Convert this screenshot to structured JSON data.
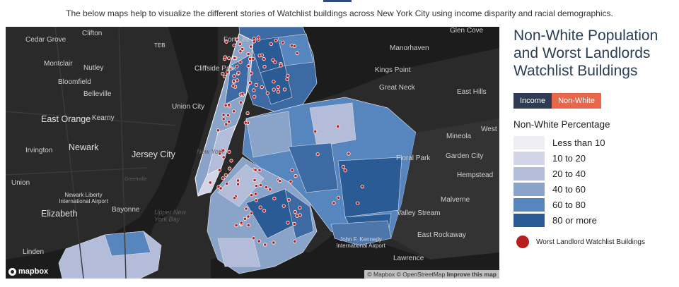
{
  "intro": "The below maps help to visualize the different stories of Watchlist buildings across New York City using income disparity and racial demographics.",
  "map": {
    "place_labels": [
      {
        "text": "Clifton",
        "size": "normal"
      },
      {
        "text": "Cedar Grove",
        "size": "normal"
      },
      {
        "text": "TEB",
        "size": "air"
      },
      {
        "text": "Fort Lee",
        "size": "normal"
      },
      {
        "text": "Glen Cove",
        "size": "normal"
      },
      {
        "text": "Manorhaven",
        "size": "normal"
      },
      {
        "text": "Montclair",
        "size": "normal"
      },
      {
        "text": "Nutley",
        "size": "normal"
      },
      {
        "text": "Cliffside Park",
        "size": "normal"
      },
      {
        "text": "Kings Point",
        "size": "normal"
      },
      {
        "text": "Bloomfield",
        "size": "normal"
      },
      {
        "text": "Great Neck",
        "size": "normal"
      },
      {
        "text": "Belleville",
        "size": "normal"
      },
      {
        "text": "East Hills",
        "size": "normal"
      },
      {
        "text": "Union City",
        "size": "normal"
      },
      {
        "text": "East Orange",
        "size": "big"
      },
      {
        "text": "Kearny",
        "size": "normal"
      },
      {
        "text": "Mineola",
        "size": "normal"
      },
      {
        "text": "West",
        "size": "normal"
      },
      {
        "text": "Newark",
        "size": "big"
      },
      {
        "text": "Irvington",
        "size": "normal"
      },
      {
        "text": "Jersey City",
        "size": "big"
      },
      {
        "text": "New York",
        "size": "water"
      },
      {
        "text": "Garden City",
        "size": "normal"
      },
      {
        "text": "Floral Park",
        "size": "normal"
      },
      {
        "text": "Hempstead",
        "size": "normal"
      },
      {
        "text": "Union",
        "size": "normal"
      },
      {
        "text": "Greenville",
        "size": "small"
      },
      {
        "text": "Newark Liberty International Airport",
        "size": "air"
      },
      {
        "text": "Malverne",
        "size": "normal"
      },
      {
        "text": "Elizabeth",
        "size": "big"
      },
      {
        "text": "Bayonne",
        "size": "normal"
      },
      {
        "text": "Upper New York Bay",
        "size": "water"
      },
      {
        "text": "Valley Stream",
        "size": "normal"
      },
      {
        "text": "East Rockaway",
        "size": "normal"
      },
      {
        "text": "Linden",
        "size": "normal"
      },
      {
        "text": "John F. Kennedy International Airport",
        "size": "air"
      },
      {
        "text": "Lawrence",
        "size": "normal"
      }
    ],
    "logo": "mapbox",
    "attribution": "© Mapbox © OpenStreetMap",
    "attribution_link": "Improve this map",
    "watchlist_building_count": 150
  },
  "panel": {
    "title": "Non-White Population and Worst Landlords Watchlist Buildings",
    "buttons": [
      {
        "label": "Income",
        "color": "#2e3b53"
      },
      {
        "label": "Non-White",
        "color": "#e8674c"
      }
    ],
    "legend_title": "Non-White Percentage",
    "legend": [
      {
        "label": "Less than 10",
        "color": "#efeef5"
      },
      {
        "label": "10 to 20",
        "color": "#d3d4e8"
      },
      {
        "label": "20 to 40",
        "color": "#b3bcd9"
      },
      {
        "label": "40 to 60",
        "color": "#8aa4c9"
      },
      {
        "label": "60 to 80",
        "color": "#5686bd"
      },
      {
        "label": "80 or more",
        "color": "#2b5b94"
      }
    ],
    "building_legend": "Worst Landlord Watchlist Buildings",
    "building_color": "#b61f1f"
  }
}
